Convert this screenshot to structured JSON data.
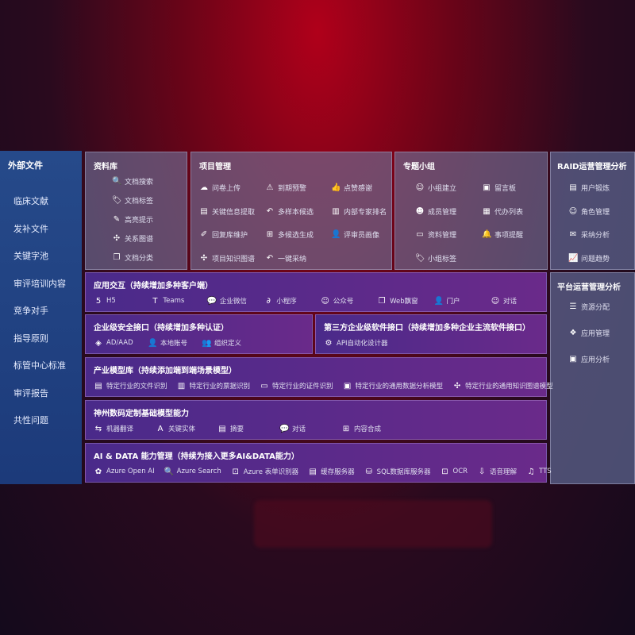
{
  "sidebar": {
    "title": "外部文件",
    "items": [
      "临床文献",
      "发补文件",
      "关键字池",
      "审评培训内容",
      "竞争对手",
      "指导原则",
      "标管中心标准",
      "审评报告",
      "共性问题"
    ]
  },
  "library": {
    "title": "资料库",
    "items": [
      {
        "icon": "doc-search-icon",
        "g": "🔍",
        "label": "文档搜索"
      },
      {
        "icon": "tag-icon",
        "g": "🏷",
        "label": "文档标签"
      },
      {
        "icon": "highlight-pen-icon",
        "g": "✎",
        "label": "高亮提示"
      },
      {
        "icon": "graph-icon",
        "g": "✣",
        "label": "关系图谱"
      },
      {
        "icon": "doc-classify-icon",
        "g": "❐",
        "label": "文档分类"
      }
    ]
  },
  "project": {
    "title": "项目管理",
    "items": [
      {
        "icon": "cloud-upload-icon",
        "g": "☁",
        "label": "问卷上传"
      },
      {
        "icon": "alarm-icon",
        "g": "⚠",
        "label": "到期预警"
      },
      {
        "icon": "thumb-up-icon",
        "g": "👍",
        "label": "点赞感谢"
      },
      {
        "icon": "extract-icon",
        "g": "▤",
        "label": "关键信息提取"
      },
      {
        "icon": "reply-icon",
        "g": "↶",
        "label": "多样本候选"
      },
      {
        "icon": "ranking-icon",
        "g": "▥",
        "label": "内部专家排名"
      },
      {
        "icon": "edit-icon",
        "g": "✐",
        "label": "回复库维护"
      },
      {
        "icon": "puzzle-icon",
        "g": "⊞",
        "label": "多候选生成"
      },
      {
        "icon": "user-profile-icon",
        "g": "👤",
        "label": "评审员画像"
      },
      {
        "icon": "knowledge-graph-icon",
        "g": "✣",
        "label": "项目知识图谱"
      },
      {
        "icon": "reply-icon",
        "g": "↶",
        "label": "一键采纳"
      }
    ]
  },
  "group": {
    "title": "专题小组",
    "items": [
      {
        "icon": "group-icon",
        "g": "☺",
        "label": "小组建立"
      },
      {
        "icon": "bbs-icon",
        "g": "▣",
        "label": "留言板"
      },
      {
        "icon": "member-icon",
        "g": "☻",
        "label": "成员管理"
      },
      {
        "icon": "clipboard-icon",
        "g": "▦",
        "label": "代办列表"
      },
      {
        "icon": "folder-icon",
        "g": "▭",
        "label": "资料管理"
      },
      {
        "icon": "bell-icon",
        "g": "🔔",
        "label": "事项提醒"
      },
      {
        "icon": "tag-icon",
        "g": "🏷",
        "label": "小组标签"
      }
    ]
  },
  "raid": {
    "title": "RAID运营管理分析",
    "items": [
      {
        "icon": "id-card-icon",
        "g": "▤",
        "label": "用户锻炼"
      },
      {
        "icon": "role-icon",
        "g": "☺",
        "label": "角色管理"
      },
      {
        "icon": "qa-icon",
        "g": "✉",
        "label": "采纳分析"
      },
      {
        "icon": "trend-icon",
        "g": "📈",
        "label": "问题趋势"
      }
    ]
  },
  "platform": {
    "title": "平台运营管理分析",
    "items": [
      {
        "icon": "list-icon",
        "g": "☰",
        "label": "资源分配"
      },
      {
        "icon": "apps-icon",
        "g": "❖",
        "label": "应用管理"
      },
      {
        "icon": "analysis-icon",
        "g": "▣",
        "label": "应用分析"
      }
    ]
  },
  "bands": [
    {
      "title": "应用交互（持续增加多种客户端）",
      "items": [
        {
          "icon": "html5-icon",
          "g": "5",
          "label": "H5"
        },
        {
          "icon": "teams-icon",
          "g": "T",
          "label": "Teams"
        },
        {
          "icon": "wechat-work-icon",
          "g": "💬",
          "label": "企业微信"
        },
        {
          "icon": "mini-program-icon",
          "g": "∂",
          "label": "小程序"
        },
        {
          "icon": "official-account-icon",
          "g": "☺",
          "label": "公众号"
        },
        {
          "icon": "web-window-icon",
          "g": "❐",
          "label": "Web飘窗"
        },
        {
          "icon": "portal-icon",
          "g": "👤",
          "label": "门户"
        },
        {
          "icon": "chat-icon",
          "g": "☺",
          "label": "对话"
        }
      ]
    },
    {
      "title": "企业级安全接口（持续增加多种认证）",
      "items": [
        {
          "icon": "ad-icon",
          "g": "◈",
          "label": "AD/AAD"
        },
        {
          "icon": "local-account-icon",
          "g": "👤",
          "label": "本地账号"
        },
        {
          "icon": "org-icon",
          "g": "👥",
          "label": "组织定义"
        }
      ]
    },
    {
      "title": "第三方企业级软件接口（持续增加多种企业主流软件接口）",
      "items": [
        {
          "icon": "api-gear-icon",
          "g": "⚙",
          "label": "API自动化设计器"
        }
      ]
    },
    {
      "title": "产业模型库（持续添加端到端场景模型）",
      "items": [
        {
          "icon": "file-icon",
          "g": "▤",
          "label": "特定行业的文件识别"
        },
        {
          "icon": "receipt-icon",
          "g": "▥",
          "label": "特定行业的票据识别"
        },
        {
          "icon": "id-card-icon",
          "g": "▭",
          "label": "特定行业的证件识别"
        },
        {
          "icon": "data-analysis-icon",
          "g": "▣",
          "label": "特定行业的通用数据分析模型"
        },
        {
          "icon": "knowledge-graph-icon",
          "g": "✣",
          "label": "特定行业的通用知识图谱模型"
        }
      ]
    },
    {
      "title": "神州数码定制基础模型能力",
      "items": [
        {
          "icon": "translate-icon",
          "g": "⇆",
          "label": "机器翻译"
        },
        {
          "icon": "entity-icon",
          "g": "A",
          "label": "关键实体"
        },
        {
          "icon": "summary-icon",
          "g": "▤",
          "label": "摘要"
        },
        {
          "icon": "chat-bubble-icon",
          "g": "💬",
          "label": "对话"
        },
        {
          "icon": "compose-icon",
          "g": "⊞",
          "label": "内容合成"
        }
      ]
    },
    {
      "title": "AI & DATA 能力管理（持续为接入更多AI&DATA能力）",
      "items": [
        {
          "icon": "openai-icon",
          "g": "✿",
          "label": "Azure Open AI"
        },
        {
          "icon": "search-doc-icon",
          "g": "🔍",
          "label": "Azure Search"
        },
        {
          "icon": "form-recognizer-icon",
          "g": "⊡",
          "label": "Azure 表单识别器"
        },
        {
          "icon": "cache-server-icon",
          "g": "▤",
          "label": "缓存服务器"
        },
        {
          "icon": "sql-db-icon",
          "g": "⛁",
          "label": "SQL数据库服务器"
        },
        {
          "icon": "ocr-icon",
          "g": "⊡",
          "label": "OCR"
        },
        {
          "icon": "speech-icon",
          "g": "⇩",
          "label": "语音理解"
        },
        {
          "icon": "tts-icon",
          "g": "♫",
          "label": "TTS"
        }
      ]
    }
  ]
}
